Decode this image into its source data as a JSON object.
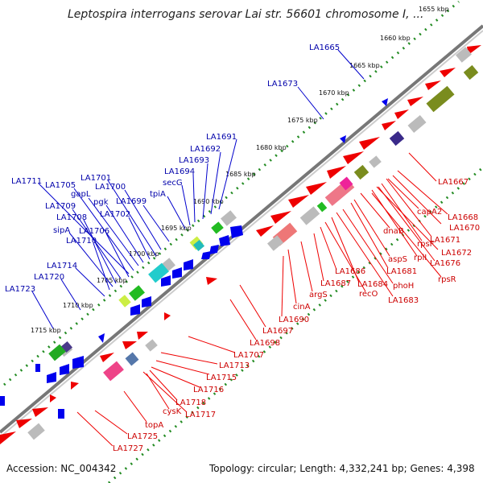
{
  "header": {
    "title": "Leptospira interrogans serovar Lai str. 56601 chromosome I, ..."
  },
  "footer": {
    "accession": "Accession: NC_004342",
    "summary": "Topology: circular; Length: 4,332,241 bp; Genes: 4,398"
  },
  "colors": {
    "backbone": "#777777",
    "forward_gene": "#0000ee",
    "reverse_gene": "#ee0000",
    "forward_label": "#0000aa",
    "reverse_label": "#cc0000",
    "tick_dots": "#228b22",
    "cog_olive": "#7a8c1e",
    "cog_gray": "#bbbbbb"
  },
  "kbp_labels": [
    "1655 kbp",
    "1660 kbp",
    "1665 kbp",
    "1670 kbp",
    "1675 kbp",
    "1680 kbp",
    "1685 kbp",
    "1690 kbp",
    "1695 kbp",
    "1700 kbp",
    "1705 kbp",
    "1710 kbp",
    "1715 kbp"
  ],
  "forward_labels": [
    "LA1665",
    "LA1673",
    "LA1691",
    "LA1692",
    "LA1693",
    "LA1694",
    "secG",
    "tpiA",
    "LA1699",
    "LA1700",
    "LA1701",
    "pgk",
    "gapL",
    "LA1702",
    "LA1705",
    "LA1711",
    "LA1709",
    "LA1708",
    "LA1706",
    "sipA",
    "LA1710",
    "LA1714",
    "LA1720",
    "LA1723"
  ],
  "reverse_labels": [
    "LA1667",
    "LA1668",
    "LA1670",
    "capA2",
    "rpsF",
    "LA1671",
    "LA1672",
    "rplI",
    "LA1676",
    "rpsR",
    "dnaB",
    "aspS",
    "LA1681",
    "phoH",
    "LA1683",
    "LA1684",
    "recO",
    "LA1686",
    "LA1687",
    "argS",
    "cinA",
    "LA1690",
    "LA1697",
    "LA1698",
    "LA1707",
    "LA1713",
    "LA1715",
    "LA1716",
    "LA1717",
    "LA1718",
    "cysK",
    "topA",
    "LA1725",
    "LA1727"
  ]
}
